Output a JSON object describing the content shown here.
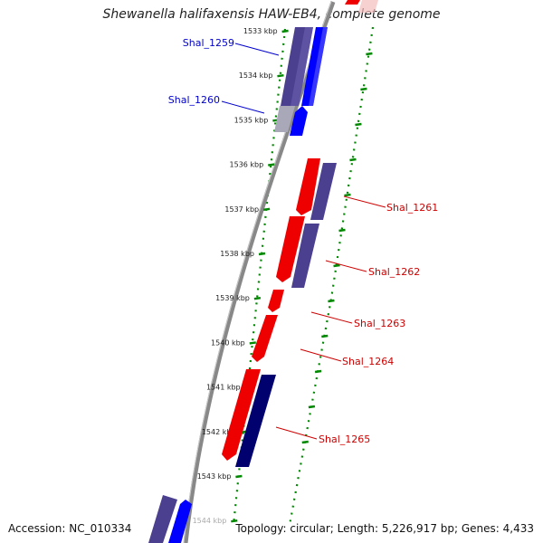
{
  "title": "Shewanella halifaxensis HAW-EB4, complete genome",
  "footer": {
    "accession": "Accession: NC_010334",
    "summary": "Topology: circular; Length: 5,226,917 bp; Genes: 4,433"
  },
  "colors": {
    "forward_gene": "#ee0000",
    "reverse_gene": "#4b3f8f",
    "blue_gene": "#0000ff",
    "navy_gene": "#00006e",
    "backbone": "#888888",
    "tick": "#008800",
    "label_blue": "#0000cc",
    "label_red": "#cc0000"
  },
  "ruler": {
    "unit": "kbp",
    "labels": [
      "1533 kbp",
      "1534 kbp",
      "1535 kbp",
      "1536 kbp",
      "1537 kbp",
      "1538 kbp",
      "1539 kbp",
      "1540 kbp",
      "1541 kbp",
      "1542 kbp",
      "1543 kbp",
      "1544 kbp"
    ]
  },
  "genes": [
    {
      "label": "Shal_1259",
      "side": "left"
    },
    {
      "label": "Shal_1260",
      "side": "left"
    },
    {
      "label": "Shal_1261",
      "side": "right"
    },
    {
      "label": "Shal_1262",
      "side": "right"
    },
    {
      "label": "Shal_1263",
      "side": "right"
    },
    {
      "label": "Shal_1264",
      "side": "right"
    },
    {
      "label": "Shal_1265",
      "side": "right"
    }
  ]
}
